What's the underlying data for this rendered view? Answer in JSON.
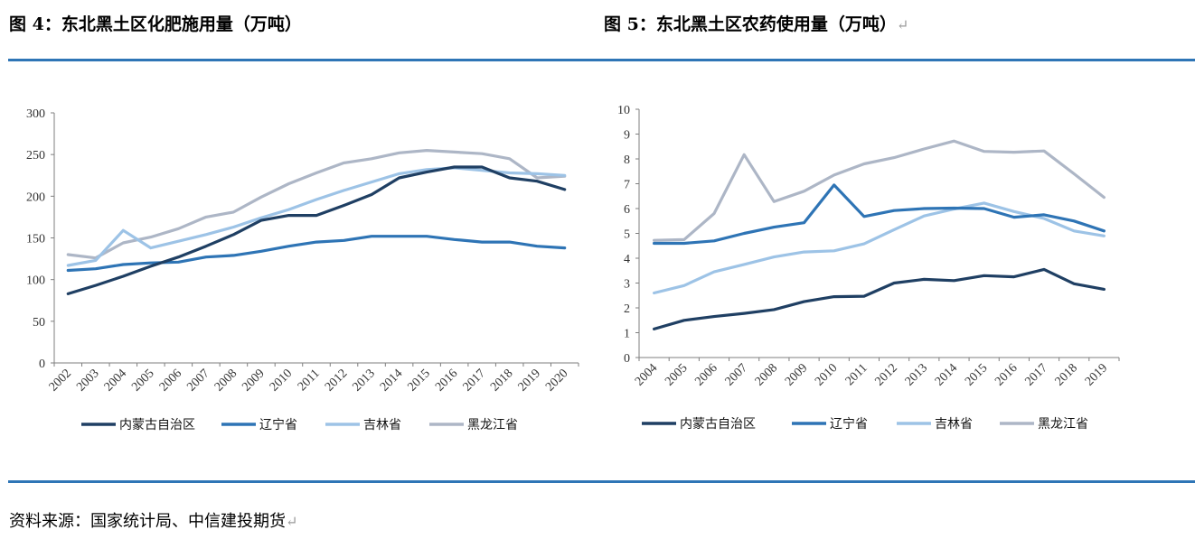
{
  "figures": {
    "left_title": "图 4：东北黑土区化肥施用量（万吨）",
    "right_title": "图 5：东北黑土区农药使用量（万吨）",
    "return_mark": "↵"
  },
  "source": {
    "text": "资料来源：国家统计局、中信建投期货",
    "return_mark": "↵"
  },
  "colors": {
    "rule": "#2e75b6",
    "neimenggu": "#1f3f63",
    "liaoning": "#2e74b5",
    "jilin": "#9dc3e6",
    "heilongjiang": "#adb6c6"
  },
  "chart_data": [
    {
      "type": "line",
      "title": "图 4：东北黑土区化肥施用量（万吨）",
      "x": [
        "2002",
        "2003",
        "2004",
        "2005",
        "2006",
        "2007",
        "2008",
        "2009",
        "2010",
        "2011",
        "2012",
        "2013",
        "2014",
        "2015",
        "2016",
        "2017",
        "2018",
        "2019",
        "2020"
      ],
      "ylim": [
        0,
        300
      ],
      "yticks": [
        0,
        50,
        100,
        150,
        200,
        250,
        300
      ],
      "grid": false,
      "legend": "bottom",
      "series": [
        {
          "name": "内蒙古自治区",
          "color": "#1f3f63",
          "values": [
            83,
            93,
            104,
            116,
            127,
            140,
            154,
            171,
            177,
            177,
            189,
            202,
            222,
            229,
            235,
            235,
            222,
            218,
            208
          ]
        },
        {
          "name": "辽宁省",
          "color": "#2e74b5",
          "values": [
            111,
            113,
            118,
            120,
            121,
            127,
            129,
            134,
            140,
            145,
            147,
            152,
            152,
            152,
            148,
            145,
            145,
            140,
            138
          ]
        },
        {
          "name": "吉林省",
          "color": "#9dc3e6",
          "values": [
            117,
            123,
            159,
            138,
            146,
            154,
            163,
            174,
            184,
            196,
            207,
            217,
            227,
            232,
            234,
            231,
            228,
            227,
            225
          ]
        },
        {
          "name": "黑龙江省",
          "color": "#adb6c6",
          "values": [
            130,
            126,
            144,
            151,
            161,
            175,
            181,
            199,
            215,
            228,
            240,
            245,
            252,
            255,
            253,
            251,
            245,
            222,
            224
          ]
        }
      ]
    },
    {
      "type": "line",
      "title": "图 5：东北黑土区农药使用量（万吨）",
      "x": [
        "2004",
        "2005",
        "2006",
        "2007",
        "2008",
        "2009",
        "2010",
        "2011",
        "2012",
        "2013",
        "2014",
        "2015",
        "2016",
        "2017",
        "2018",
        "2019"
      ],
      "ylim": [
        0,
        10
      ],
      "yticks": [
        0,
        1,
        2,
        3,
        4,
        5,
        6,
        7,
        8,
        9,
        10
      ],
      "grid": false,
      "legend": "bottom",
      "series": [
        {
          "name": "内蒙古自治区",
          "color": "#1f3f63",
          "values": [
            1.15,
            1.5,
            1.65,
            1.78,
            1.93,
            2.25,
            2.45,
            2.47,
            3.0,
            3.15,
            3.1,
            3.3,
            3.25,
            3.55,
            2.97,
            2.75
          ]
        },
        {
          "name": "辽宁省",
          "color": "#2e74b5",
          "values": [
            4.6,
            4.6,
            4.7,
            5.0,
            5.25,
            5.43,
            6.95,
            5.68,
            5.92,
            6.0,
            6.02,
            6.0,
            5.65,
            5.75,
            5.5,
            5.1
          ]
        },
        {
          "name": "吉林省",
          "color": "#9dc3e6",
          "values": [
            2.6,
            2.9,
            3.45,
            3.75,
            4.05,
            4.25,
            4.3,
            4.58,
            5.15,
            5.7,
            5.98,
            6.22,
            5.88,
            5.6,
            5.1,
            4.9
          ]
        },
        {
          "name": "黑龙江省",
          "color": "#adb6c6",
          "values": [
            4.72,
            4.75,
            5.8,
            8.17,
            6.28,
            6.7,
            7.35,
            7.8,
            8.05,
            8.4,
            8.72,
            8.3,
            8.27,
            8.32,
            7.4,
            6.45
          ]
        }
      ]
    }
  ]
}
